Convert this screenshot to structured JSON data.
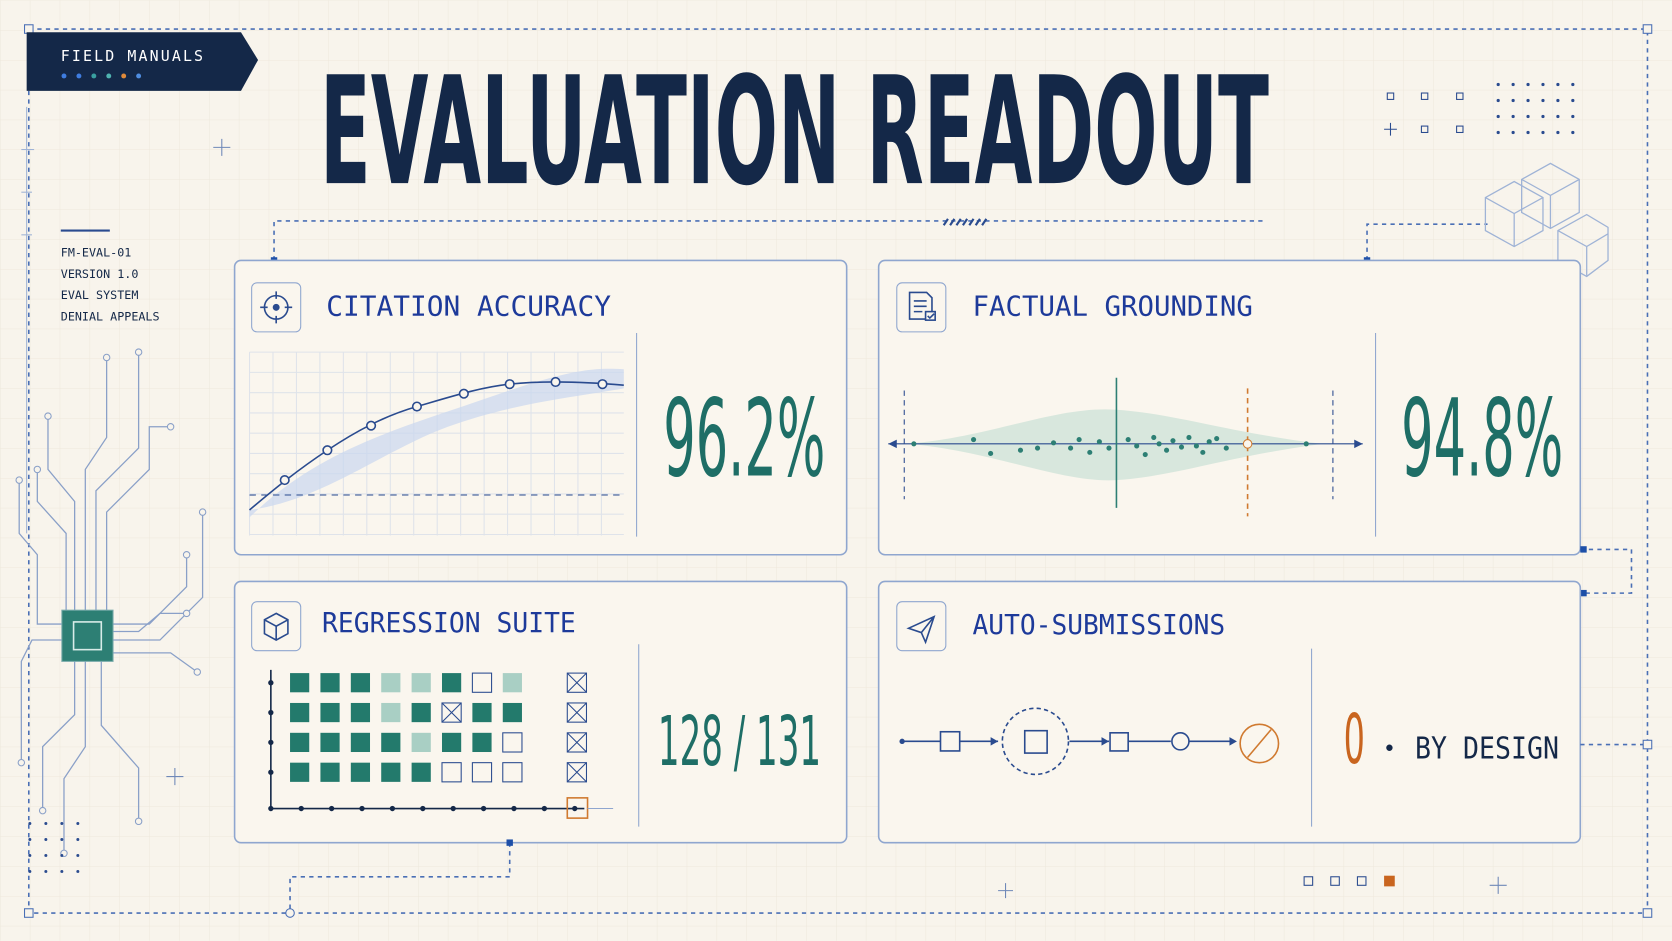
{
  "badge": {
    "title": "FIELD MANUALS"
  },
  "header": {
    "title": "EVALUATION READOUT"
  },
  "meta": [
    "FM-EVAL-01",
    "VERSION 1.0",
    "EVAL SYSTEM",
    "DENIAL APPEALS"
  ],
  "panels": [
    {
      "title": "CITATION ACCURACY",
      "value": "96.2%"
    },
    {
      "title": "FACTUAL GROUNDING",
      "value": "94.8%"
    },
    {
      "title": "REGRESSION SUITE",
      "value": "128 / 131"
    },
    {
      "title": "AUTO-SUBMISSIONS",
      "value": "0",
      "note": "BY DESIGN"
    }
  ]
}
